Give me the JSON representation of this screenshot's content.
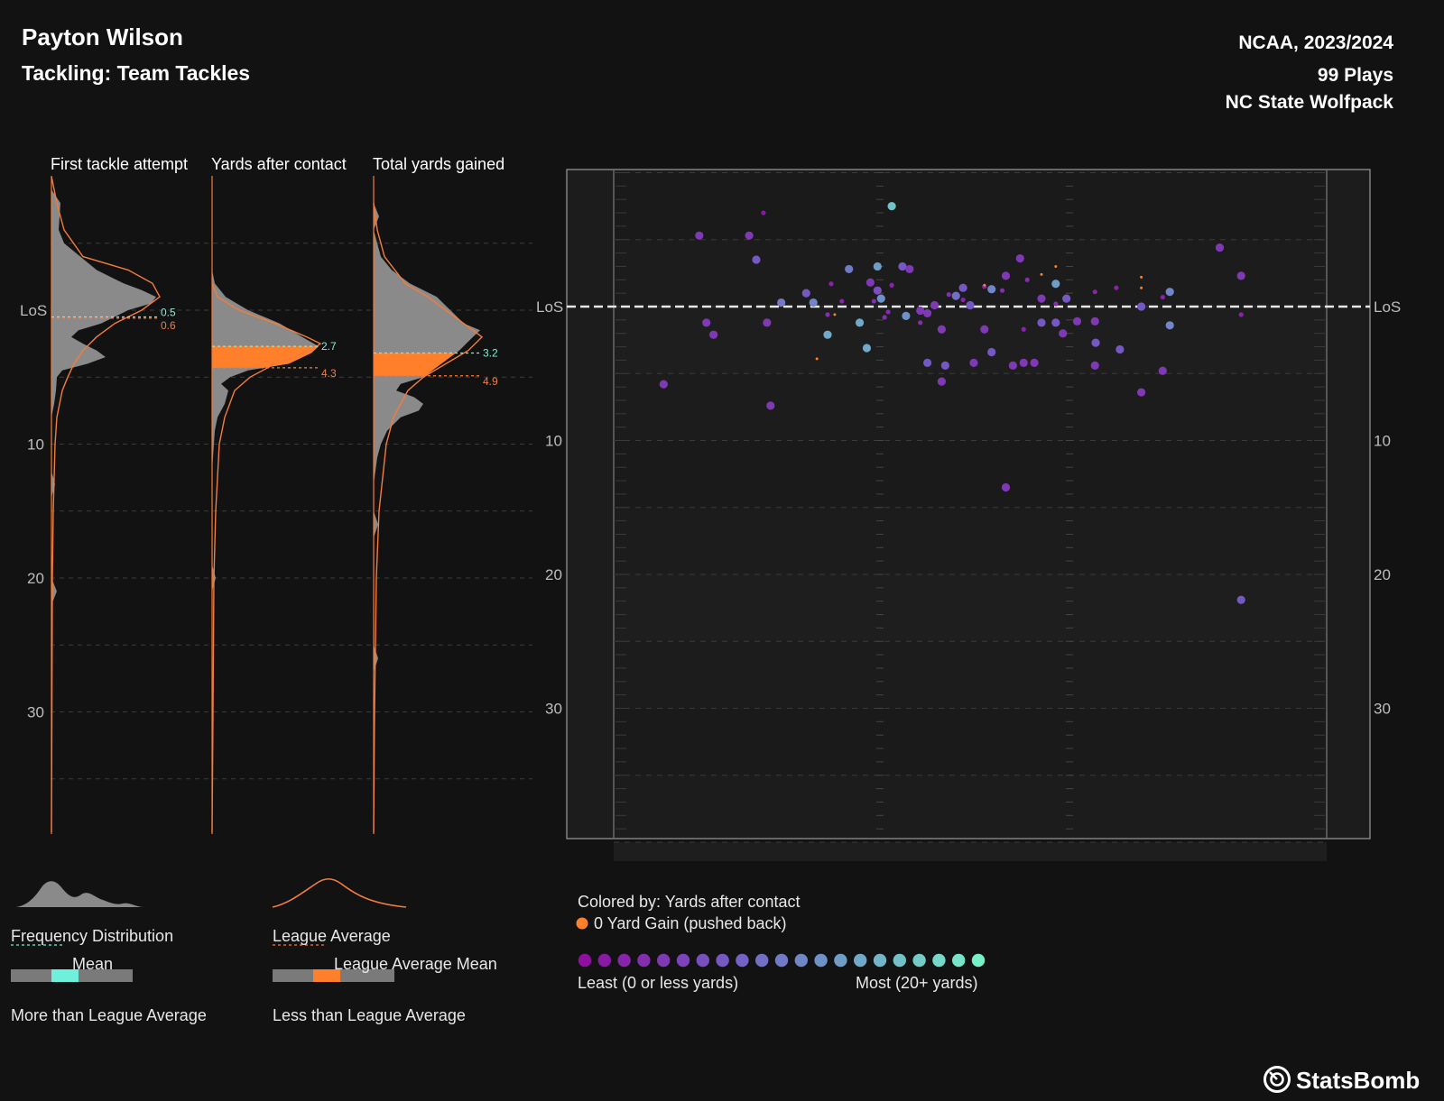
{
  "header": {
    "player": "Payton Wilson",
    "subtitle": "Tackling: Team Tackles",
    "season": "NCAA, 2023/2024",
    "plays": "99 Plays",
    "team": "NC State Wolfpack"
  },
  "colors": {
    "background": "#121212",
    "density_fill": "#8a8a8a",
    "league_line": "#f47c3c",
    "mean_line": "#7ef0d8",
    "less_than_league": "#ff7f2a",
    "more_than_league": "#6ff0dc"
  },
  "chart_data": [
    {
      "type": "area",
      "panels": [
        {
          "title": "First tackle attempt",
          "mean": 0.5,
          "league_mean": 0.6
        },
        {
          "title": "Yards after contact",
          "mean": 2.7,
          "league_mean": 4.3
        },
        {
          "title": "Total yards gained",
          "mean": 3.2,
          "league_mean": 4.9
        }
      ],
      "y_ticks": [
        "LoS",
        "10",
        "20",
        "30"
      ],
      "y_tick_values": [
        0,
        10,
        20,
        30
      ],
      "ylim": [
        -10,
        39
      ],
      "grid": true
    },
    {
      "type": "scatter",
      "y_ticks": [
        "LoS",
        "10",
        "20",
        "30"
      ],
      "y_tick_values": [
        0,
        10,
        20,
        30
      ],
      "ylim": [
        -10,
        40
      ],
      "colored_by": "Colored by: Yards after contact",
      "points": [
        {
          "x": 0.07,
          "y": 5.8,
          "c": 0.2
        },
        {
          "x": 0.12,
          "y": -5.3,
          "c": 0.2
        },
        {
          "x": 0.13,
          "y": 1.2,
          "c": 0.2
        },
        {
          "x": 0.14,
          "y": 2.1,
          "c": 0.2
        },
        {
          "x": 0.2,
          "y": -3.5,
          "c": 0.35
        },
        {
          "x": 0.19,
          "y": -5.3,
          "c": 0.2
        },
        {
          "x": 0.215,
          "y": 1.2,
          "c": 0.2
        },
        {
          "x": 0.22,
          "y": 7.4,
          "c": 0.2
        },
        {
          "x": 0.235,
          "y": -0.3,
          "c": 0.5
        },
        {
          "x": 0.27,
          "y": -1.0,
          "c": 0.35
        },
        {
          "x": 0.28,
          "y": -0.3,
          "c": 0.55
        },
        {
          "x": 0.3,
          "y": 2.1,
          "c": 0.7
        },
        {
          "x": 0.33,
          "y": -2.8,
          "c": 0.5
        },
        {
          "x": 0.345,
          "y": 1.2,
          "c": 0.7
        },
        {
          "x": 0.355,
          "y": 3.1,
          "c": 0.7
        },
        {
          "x": 0.36,
          "y": -1.8,
          "c": 0.2
        },
        {
          "x": 0.37,
          "y": -3.0,
          "c": 0.65
        },
        {
          "x": 0.375,
          "y": -0.6,
          "c": 0.6
        },
        {
          "x": 0.39,
          "y": -7.5,
          "c": 0.8
        },
        {
          "x": 0.37,
          "y": -1.2,
          "c": 0.3
        },
        {
          "x": 0.405,
          "y": -3.0,
          "c": 0.35
        },
        {
          "x": 0.41,
          "y": 0.7,
          "c": 0.6
        },
        {
          "x": 0.415,
          "y": -2.8,
          "c": 0.2
        },
        {
          "x": 0.43,
          "y": 0.3,
          "c": 0.2
        },
        {
          "x": 0.44,
          "y": 4.2,
          "c": 0.35
        },
        {
          "x": 0.44,
          "y": 0.5,
          "c": 0.2
        },
        {
          "x": 0.45,
          "y": -0.1,
          "c": 0.2
        },
        {
          "x": 0.46,
          "y": 1.7,
          "c": 0.2
        },
        {
          "x": 0.46,
          "y": 5.6,
          "c": 0.2
        },
        {
          "x": 0.465,
          "y": 4.4,
          "c": 0.35
        },
        {
          "x": 0.48,
          "y": -0.8,
          "c": 0.45
        },
        {
          "x": 0.49,
          "y": -1.4,
          "c": 0.35
        },
        {
          "x": 0.5,
          "y": -0.1,
          "c": 0.35
        },
        {
          "x": 0.505,
          "y": 4.2,
          "c": 0.2
        },
        {
          "x": 0.52,
          "y": 1.7,
          "c": 0.2
        },
        {
          "x": 0.53,
          "y": 3.4,
          "c": 0.35
        },
        {
          "x": 0.53,
          "y": -1.3,
          "c": 0.55
        },
        {
          "x": 0.55,
          "y": -2.3,
          "c": 0.2
        },
        {
          "x": 0.55,
          "y": 13.5,
          "c": 0.2
        },
        {
          "x": 0.56,
          "y": 4.4,
          "c": 0.2
        },
        {
          "x": 0.57,
          "y": -3.6,
          "c": 0.2
        },
        {
          "x": 0.575,
          "y": 4.2,
          "c": 0.2
        },
        {
          "x": 0.59,
          "y": 4.2,
          "c": 0.2
        },
        {
          "x": 0.6,
          "y": -0.6,
          "c": 0.2
        },
        {
          "x": 0.6,
          "y": 1.2,
          "c": 0.35
        },
        {
          "x": 0.62,
          "y": 1.2,
          "c": 0.35
        },
        {
          "x": 0.62,
          "y": -1.7,
          "c": 0.65
        },
        {
          "x": 0.63,
          "y": 2.0,
          "c": 0.2
        },
        {
          "x": 0.635,
          "y": -0.6,
          "c": 0.35
        },
        {
          "x": 0.65,
          "y": 1.1,
          "c": 0.2
        },
        {
          "x": 0.675,
          "y": 1.1,
          "c": 0.2
        },
        {
          "x": 0.675,
          "y": 4.4,
          "c": 0.2
        },
        {
          "x": 0.676,
          "y": 2.7,
          "c": 0.35
        },
        {
          "x": 0.71,
          "y": 3.2,
          "c": 0.35
        },
        {
          "x": 0.74,
          "y": 6.4,
          "c": 0.2
        },
        {
          "x": 0.74,
          "y": 0.0,
          "c": 0.35
        },
        {
          "x": 0.78,
          "y": -1.1,
          "c": 0.55
        },
        {
          "x": 0.78,
          "y": 1.4,
          "c": 0.55
        },
        {
          "x": 0.77,
          "y": 4.8,
          "c": 0.2
        },
        {
          "x": 0.85,
          "y": -4.4,
          "c": 0.2
        },
        {
          "x": 0.88,
          "y": -2.3,
          "c": 0.2
        },
        {
          "x": 0.88,
          "y": 21.9,
          "c": 0.35
        },
        {
          "x": 0.305,
          "y": -1.7,
          "c": 0.1
        },
        {
          "x": 0.32,
          "y": -0.4,
          "c": 0.1
        },
        {
          "x": 0.365,
          "y": -0.4,
          "c": 0.15
        },
        {
          "x": 0.385,
          "y": 0.4,
          "c": 0.15
        },
        {
          "x": 0.39,
          "y": -1.6,
          "c": 0.1
        },
        {
          "x": 0.43,
          "y": 1.2,
          "c": 0.15
        },
        {
          "x": 0.47,
          "y": -0.9,
          "c": 0.15
        },
        {
          "x": 0.49,
          "y": -0.5,
          "c": 0.1
        },
        {
          "x": 0.52,
          "y": -1.5,
          "c": 0.1
        },
        {
          "x": 0.545,
          "y": -1.2,
          "c": 0.15
        },
        {
          "x": 0.575,
          "y": 1.7,
          "c": 0.1
        },
        {
          "x": 0.58,
          "y": -2.0,
          "c": 0.15
        },
        {
          "x": 0.62,
          "y": -0.2,
          "c": 0.15
        },
        {
          "x": 0.675,
          "y": -1.1,
          "c": 0.1
        },
        {
          "x": 0.705,
          "y": -1.4,
          "c": 0.1
        },
        {
          "x": 0.77,
          "y": -0.7,
          "c": 0.1
        },
        {
          "x": 0.88,
          "y": 0.6,
          "c": 0.1
        },
        {
          "x": 0.3,
          "y": 0.6,
          "c": 0.15
        },
        {
          "x": 0.21,
          "y": -7.0,
          "c": 0.05
        },
        {
          "x": 0.38,
          "y": 0.8,
          "c": 0.15
        }
      ],
      "pushed_back_points": [
        {
          "x": 0.285,
          "y": 3.9
        },
        {
          "x": 0.31,
          "y": 0.6
        },
        {
          "x": 0.52,
          "y": -1.6
        },
        {
          "x": 0.6,
          "y": -2.4
        },
        {
          "x": 0.62,
          "y": -3.0
        },
        {
          "x": 0.74,
          "y": -2.2
        },
        {
          "x": 0.74,
          "y": -1.4
        }
      ]
    }
  ],
  "legend": {
    "frequency_distribution": "Frequency Distribution",
    "league_average": "League Average",
    "mean": "Mean",
    "league_average_mean": "League Average Mean",
    "more_than": "More than League Average",
    "less_than": "Less than League Average",
    "colored_by": "Colored by: Yards after contact",
    "pushed_back": "0 Yard Gain (pushed back)",
    "least": "Least (0 or less yards)",
    "most": "Most (20+ yards)",
    "scale_stops": 21
  },
  "brand": "StatsBomb"
}
